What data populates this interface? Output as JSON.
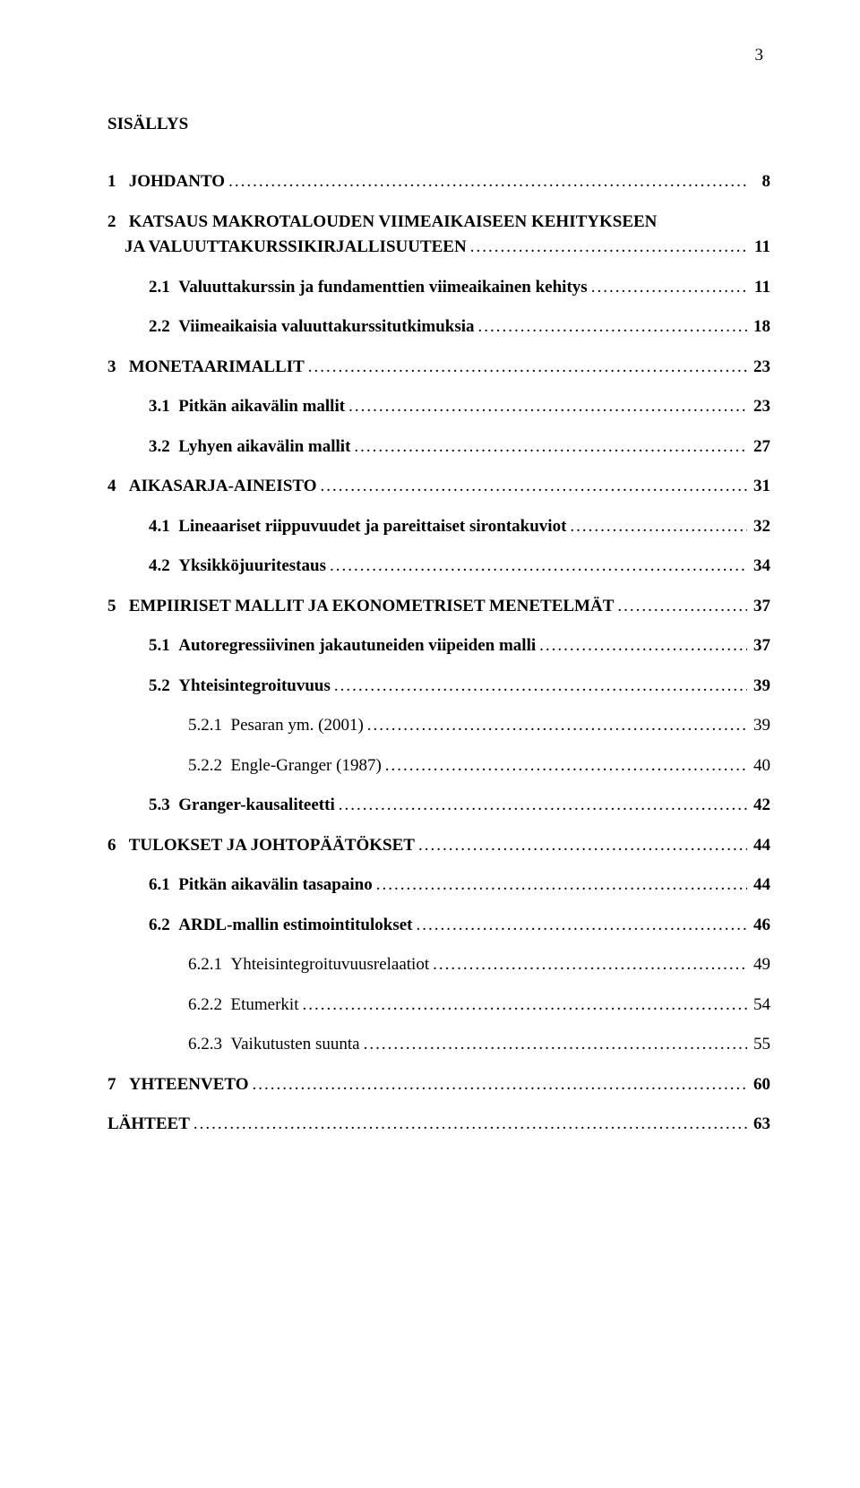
{
  "page_number": "3",
  "title": "SISÄLLYS",
  "entries": [
    {
      "type": "l0",
      "num": "1",
      "label": "JOHDANTO",
      "page": "8",
      "bold": true
    },
    {
      "type": "l0ml",
      "num": "2",
      "line1": "KATSAUS MAKROTALOUDEN VIIMEAIKAISEEN KEHITYKSEEN",
      "line2": "JA VALUUTTAKURSSIKIRJALLISUUTEEN",
      "page": "11",
      "bold": true
    },
    {
      "type": "l1",
      "num": "2.1",
      "label": "Valuuttakurssin ja fundamenttien viimeaikainen kehitys",
      "page": "11",
      "bold": true
    },
    {
      "type": "l1",
      "num": "2.2",
      "label": "Viimeaikaisia valuuttakurssitutkimuksia",
      "page": "18",
      "bold": true
    },
    {
      "type": "l0",
      "num": "3",
      "label": "MONETAARIMALLIT",
      "page": "23",
      "bold": true
    },
    {
      "type": "l1",
      "num": "3.1",
      "label": "Pitkän aikavälin mallit",
      "page": "23",
      "bold": true
    },
    {
      "type": "l1",
      "num": "3.2",
      "label": "Lyhyen aikavälin mallit",
      "page": "27",
      "bold": true
    },
    {
      "type": "l0",
      "num": "4",
      "label": "AIKASARJA-AINEISTO",
      "page": "31",
      "bold": true
    },
    {
      "type": "l1",
      "num": "4.1",
      "label": "Lineaariset riippuvuudet ja pareittaiset sirontakuviot",
      "page": "32",
      "bold": true
    },
    {
      "type": "l1",
      "num": "4.2",
      "label": "Yksikköjuuritestaus",
      "page": "34",
      "bold": true
    },
    {
      "type": "l0",
      "num": "5",
      "label": "EMPIIRISET MALLIT JA EKONOMETRISET MENETELMÄT",
      "page": "37",
      "bold": true
    },
    {
      "type": "l1",
      "num": "5.1",
      "label": "Autoregressiivinen jakautuneiden viipeiden malli",
      "page": "37",
      "bold": true
    },
    {
      "type": "l1",
      "num": "5.2",
      "label": "Yhteisintegroituvuus",
      "page": "39",
      "bold": true
    },
    {
      "type": "l2",
      "num": "5.2.1",
      "label": "Pesaran ym. (2001)",
      "page": "39",
      "bold": false
    },
    {
      "type": "l2",
      "num": "5.2.2",
      "label": "Engle-Granger (1987)",
      "page": "40",
      "bold": false
    },
    {
      "type": "l1",
      "num": "5.3",
      "label": "Granger-kausaliteetti",
      "page": "42",
      "bold": true
    },
    {
      "type": "l0",
      "num": "6",
      "label": "TULOKSET JA JOHTOPÄÄTÖKSET",
      "page": "44",
      "bold": true
    },
    {
      "type": "l1",
      "num": "6.1",
      "label": "Pitkän aikavälin tasapaino",
      "page": "44",
      "bold": true
    },
    {
      "type": "l1",
      "num": "6.2",
      "label": "ARDL-mallin estimointitulokset",
      "page": "46",
      "bold": true
    },
    {
      "type": "l2",
      "num": "6.2.1",
      "label": "Yhteisintegroituvuusrelaatiot",
      "page": "49",
      "bold": false
    },
    {
      "type": "l2",
      "num": "6.2.2",
      "label": "Etumerkit",
      "page": "54",
      "bold": false
    },
    {
      "type": "l2",
      "num": "6.2.3",
      "label": "Vaikutusten suunta",
      "page": "55",
      "bold": false
    },
    {
      "type": "l0",
      "num": "7",
      "label": "YHTEENVETO",
      "page": "60",
      "bold": true
    },
    {
      "type": "l0nn",
      "label": "LÄHTEET",
      "page": "63",
      "bold": true
    }
  ],
  "num_pad": {
    "l0": "   ",
    "l1": "  ",
    "l2": "  "
  }
}
